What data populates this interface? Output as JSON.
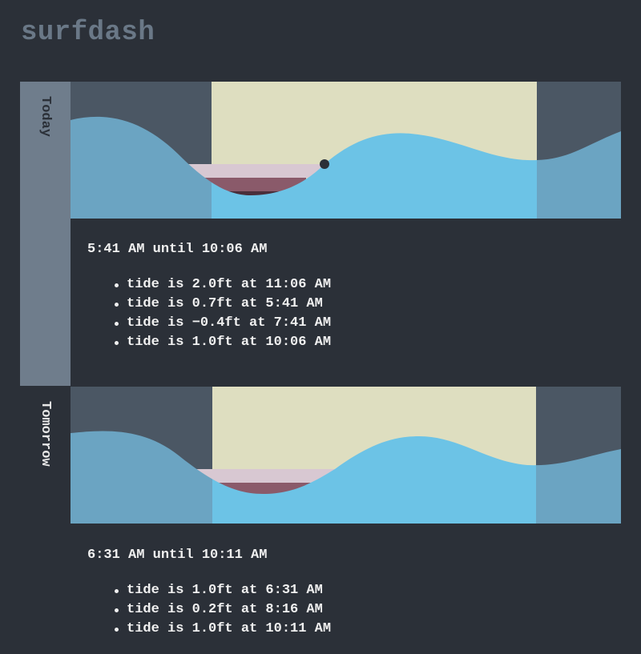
{
  "app": {
    "title": "surfdash"
  },
  "colors": {
    "background": "#2b3038",
    "night": "#4b5764",
    "daylight": "#dedec0",
    "water_day": "#6cc3e6",
    "water_night": "#6ba4c2",
    "low_tide_band_light": "#d8c8d2",
    "low_tide_band_mid": "#8a5a6a",
    "low_tide_band_dark": "#4a2e3a",
    "today_tab": "#6f7d8c"
  },
  "days": [
    {
      "label": "Today",
      "window": "5:41 AM until 10:06 AM",
      "tides": [
        "tide is 2.0ft at 11:06 AM",
        "tide is 0.7ft at 5:41 AM",
        "tide is −0.4ft at 7:41 AM",
        "tide is 1.0ft at 10:06 AM"
      ],
      "current_marker": true
    },
    {
      "label": "Tomorrow",
      "window": "6:31 AM until 10:11 AM",
      "tides": [
        "tide is 1.0ft at 6:31 AM",
        "tide is 0.2ft at 8:16 AM",
        "tide is 1.0ft at 10:11 AM"
      ],
      "current_marker": false
    }
  ]
}
